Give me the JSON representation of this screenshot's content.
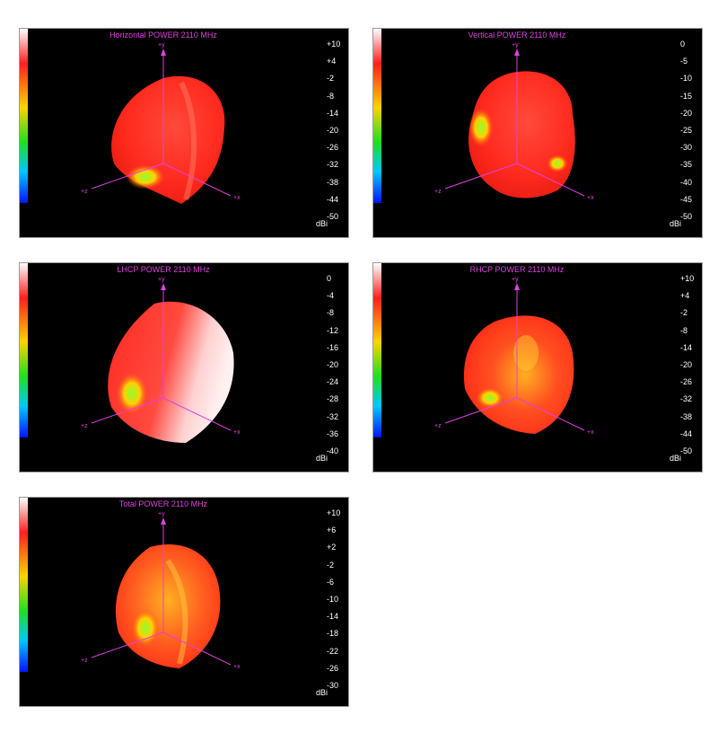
{
  "panels": [
    {
      "title": "Horizontal POWER 2110  MHz",
      "scale_ticks": [
        "+10",
        "+4",
        "-2",
        "-8",
        "-14",
        "-20",
        "-26",
        "-32",
        "-38",
        "-44",
        "-50"
      ],
      "unit": "dBi",
      "axis_labels": {
        "y": "+y",
        "x": "+x",
        "z": "+z"
      }
    },
    {
      "title": "Vertical POWER 2110  MHz",
      "scale_ticks": [
        "0",
        "-5",
        "-10",
        "-15",
        "-20",
        "-25",
        "-30",
        "-35",
        "-40",
        "-45",
        "-50"
      ],
      "unit": "dBi",
      "axis_labels": {
        "y": "+y",
        "x": "+x",
        "z": "+z"
      }
    },
    {
      "title": "LHCP POWER 2110  MHz",
      "scale_ticks": [
        "0",
        "-4",
        "-8",
        "-12",
        "-16",
        "-20",
        "-24",
        "-28",
        "-32",
        "-36",
        "-40"
      ],
      "unit": "dBi",
      "axis_labels": {
        "y": "+y",
        "x": "+x",
        "z": "+z"
      }
    },
    {
      "title": "RHCP POWER 2110  MHz",
      "scale_ticks": [
        "+10",
        "+4",
        "-2",
        "-8",
        "-14",
        "-20",
        "-26",
        "-32",
        "-38",
        "-44",
        "-50"
      ],
      "unit": "dBi",
      "axis_labels": {
        "y": "+y",
        "x": "+x",
        "z": "+z"
      }
    },
    {
      "title": "Total POWER 2110  MHz",
      "scale_ticks": [
        "+10",
        "+6",
        "+2",
        "-2",
        "-6",
        "-10",
        "-14",
        "-18",
        "-22",
        "-26",
        "-30"
      ],
      "unit": "dBi",
      "axis_labels": {
        "y": "+y",
        "x": "+x",
        "z": "+z"
      }
    }
  ],
  "chart_data": [
    {
      "type": "heatmap",
      "title": "Horizontal POWER 2110  MHz",
      "colorbar_range": [
        -50,
        10
      ],
      "colorbar_label": "dBi",
      "colormap": [
        "#ffffff",
        "#ff1e1e",
        "#ffd200",
        "#1ee01e",
        "#00c8ff",
        "#0014ff"
      ],
      "grid": false,
      "legend": "right"
    },
    {
      "type": "heatmap",
      "title": "Vertical POWER 2110  MHz",
      "colorbar_range": [
        -50,
        0
      ],
      "colorbar_label": "dBi",
      "colormap": [
        "#ffffff",
        "#ff1e1e",
        "#ffd200",
        "#1ee01e",
        "#00c8ff",
        "#0014ff"
      ],
      "grid": false,
      "legend": "right"
    },
    {
      "type": "heatmap",
      "title": "LHCP POWER 2110  MHz",
      "colorbar_range": [
        -40,
        0
      ],
      "colorbar_label": "dBi",
      "colormap": [
        "#ffffff",
        "#ff1e1e",
        "#ffd200",
        "#1ee01e",
        "#00c8ff",
        "#0014ff"
      ],
      "grid": false,
      "legend": "right"
    },
    {
      "type": "heatmap",
      "title": "RHCP POWER 2110  MHz",
      "colorbar_range": [
        -50,
        10
      ],
      "colorbar_label": "dBi",
      "colormap": [
        "#ffffff",
        "#ff1e1e",
        "#ffd200",
        "#1ee01e",
        "#00c8ff",
        "#0014ff"
      ],
      "grid": false,
      "legend": "right"
    },
    {
      "type": "heatmap",
      "title": "Total POWER 2110  MHz",
      "colorbar_range": [
        -30,
        10
      ],
      "colorbar_label": "dBi",
      "colormap": [
        "#ffffff",
        "#ff1e1e",
        "#ffd200",
        "#1ee01e",
        "#00c8ff",
        "#0014ff"
      ],
      "grid": false,
      "legend": "right"
    }
  ]
}
